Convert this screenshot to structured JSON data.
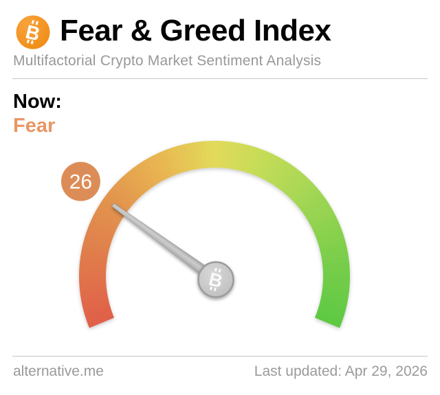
{
  "header": {
    "title": "Fear & Greed Index",
    "subtitle": "Multifactorial Crypto Market Sentiment Analysis",
    "logo_color": "#f7931a"
  },
  "now": {
    "label": "Now:",
    "classification": "Fear",
    "color": "#e89664"
  },
  "chart_data": {
    "type": "gauge",
    "title": "Fear & Greed Index",
    "value": 26,
    "min": 0,
    "max": 100,
    "classification": "Fear",
    "gauge": {
      "start_angle_deg": 157.5,
      "sweep_deg": 225,
      "color_stops": [
        {
          "t": 0.0,
          "color": "#e05f49"
        },
        {
          "t": 0.14,
          "color": "#e07c4c"
        },
        {
          "t": 0.26,
          "color": "#e2944e"
        },
        {
          "t": 0.38,
          "color": "#e9b451"
        },
        {
          "t": 0.5,
          "color": "#e2da5a"
        },
        {
          "t": 0.6,
          "color": "#c4dc59"
        },
        {
          "t": 0.72,
          "color": "#a3d654"
        },
        {
          "t": 0.86,
          "color": "#7bce4b"
        },
        {
          "t": 1.0,
          "color": "#5dc943"
        }
      ],
      "badge_value": "26",
      "badge_color": "#dc8d57",
      "badge_text_color": "#ffffff",
      "needle_color": "#b3b3b3",
      "hub_color": "#c6c6c6"
    }
  },
  "footer": {
    "site": "alternative.me",
    "last_updated": "Last updated: Apr 29, 2026"
  }
}
